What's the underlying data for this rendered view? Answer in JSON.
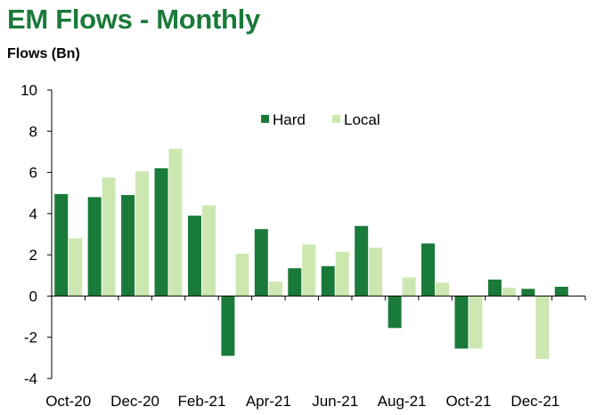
{
  "header": {
    "title": "EM Flows - Monthly",
    "unit_label": "Flows (Bn)"
  },
  "chart_data": {
    "type": "bar",
    "title": "EM Flows - Monthly",
    "ylabel": "Flows (Bn)",
    "xlabel": "",
    "ylim": [
      -4,
      10
    ],
    "y_ticks": [
      10,
      8,
      6,
      4,
      2,
      0,
      -2,
      -4
    ],
    "grid": false,
    "legend_position": "top-center",
    "categories": [
      "Oct-20",
      "Nov-20",
      "Dec-20",
      "Jan-21",
      "Feb-21",
      "Mar-21",
      "Apr-21",
      "May-21",
      "Jun-21",
      "Jul-21",
      "Aug-21",
      "Sep-21",
      "Oct-21",
      "Nov-21",
      "Dec-21",
      "Jan-22"
    ],
    "x_tick_labels": [
      "Oct-20",
      "",
      "Dec-20",
      "",
      "Feb-21",
      "",
      "Apr-21",
      "",
      "Jun-21",
      "",
      "Aug-21",
      "",
      "Oct-21",
      "",
      "Dec-21",
      ""
    ],
    "series": [
      {
        "name": "Hard",
        "color": "#1a7a3a",
        "values": [
          4.95,
          4.8,
          4.9,
          6.2,
          3.9,
          -2.9,
          3.25,
          1.35,
          1.45,
          3.4,
          -1.55,
          2.55,
          -2.55,
          0.8,
          0.35,
          0.45
        ]
      },
      {
        "name": "Local",
        "color": "#cce8b0",
        "values": [
          2.8,
          5.75,
          6.05,
          7.15,
          4.4,
          2.05,
          0.7,
          2.5,
          2.15,
          2.35,
          0.9,
          0.65,
          -2.55,
          0.4,
          -3.05,
          0
        ]
      }
    ]
  }
}
